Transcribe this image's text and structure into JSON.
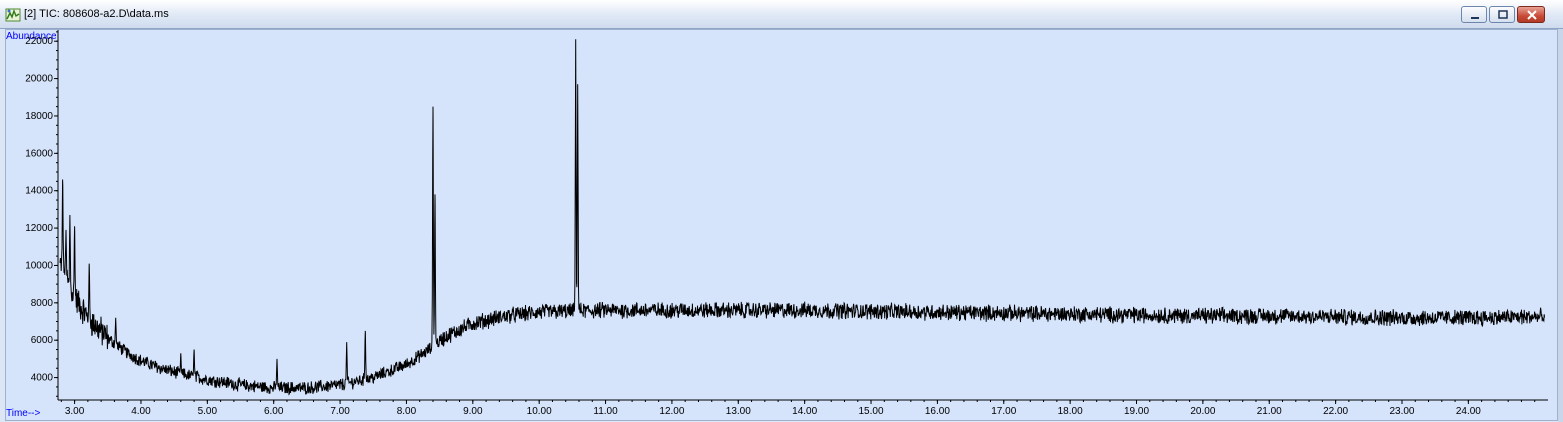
{
  "window": {
    "title": "[2] TIC: 808608-a2.D\\data.ms",
    "icon": "chromatogram-app-icon"
  },
  "colors": {
    "plot_background": "#d5e4fb",
    "trace": "#000000",
    "axis_label": "#0000ff"
  },
  "chart_data": {
    "type": "line",
    "title": "",
    "xlabel": "Time-->",
    "ylabel": "Abundance",
    "xlim": [
      2.75,
      25.2
    ],
    "ylim": [
      2800,
      22600
    ],
    "x_tick_labels": [
      "3.00",
      "4.00",
      "5.00",
      "6.00",
      "7.00",
      "8.00",
      "9.00",
      "10.00",
      "11.00",
      "12.00",
      "13.00",
      "14.00",
      "15.00",
      "16.00",
      "17.00",
      "18.00",
      "19.00",
      "20.00",
      "21.00",
      "22.00",
      "23.00",
      "24.00"
    ],
    "y_tick_labels": [
      "4000",
      "6000",
      "8000",
      "10000",
      "12000",
      "14000",
      "16000",
      "18000",
      "20000",
      "22000"
    ],
    "series": [
      {
        "baseline": {
          "x": [
            2.8,
            2.9,
            3.0,
            3.2,
            3.5,
            3.8,
            4.0,
            4.3,
            4.6,
            5.0,
            5.5,
            6.0,
            6.5,
            7.0,
            7.5,
            8.0,
            8.3,
            8.6,
            9.0,
            9.5,
            10.0,
            11.0,
            12.0,
            13.0,
            14.0,
            15.0,
            16.0,
            17.0,
            18.0,
            19.0,
            20.0,
            21.0,
            22.0,
            23.0,
            24.0,
            25.0
          ],
          "y": [
            10000,
            9000,
            8300,
            7200,
            6100,
            5300,
            4900,
            4500,
            4200,
            3900,
            3600,
            3450,
            3450,
            3600,
            4000,
            4700,
            5400,
            6200,
            6900,
            7300,
            7500,
            7600,
            7600,
            7600,
            7600,
            7550,
            7500,
            7450,
            7400,
            7350,
            7300,
            7300,
            7250,
            7200,
            7200,
            7250
          ]
        },
        "peaks": [
          {
            "x": 2.82,
            "y": 14600
          },
          {
            "x": 2.87,
            "y": 11900
          },
          {
            "x": 2.93,
            "y": 12700
          },
          {
            "x": 3.0,
            "y": 12100
          },
          {
            "x": 3.22,
            "y": 10100
          },
          {
            "x": 3.62,
            "y": 7200
          },
          {
            "x": 4.6,
            "y": 5300
          },
          {
            "x": 4.8,
            "y": 5500
          },
          {
            "x": 6.05,
            "y": 5000
          },
          {
            "x": 7.1,
            "y": 5900
          },
          {
            "x": 7.38,
            "y": 6500
          },
          {
            "x": 8.4,
            "y": 18500
          },
          {
            "x": 8.43,
            "y": 13800
          },
          {
            "x": 10.55,
            "y": 22100
          },
          {
            "x": 10.58,
            "y": 19700
          }
        ]
      }
    ],
    "grid": false,
    "legend": "none"
  }
}
